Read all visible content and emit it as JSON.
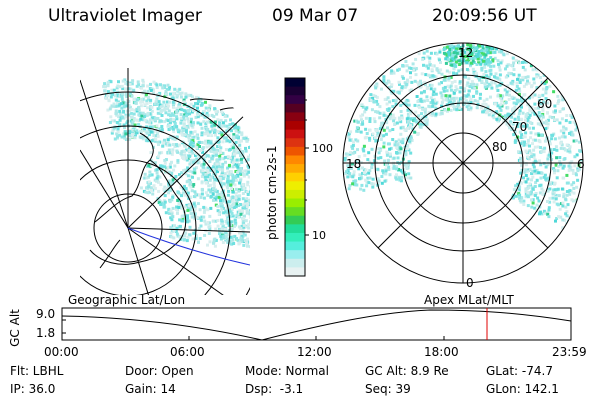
{
  "header": {
    "instrument": "Ultraviolet Imager",
    "date": "09 Mar 07",
    "time": "20:09:56 UT"
  },
  "colorbar": {
    "label": "photon cm-2s-1",
    "ticks": [
      "100",
      "10"
    ],
    "colors": [
      "#000033",
      "#1a0033",
      "#330044",
      "#550022",
      "#880011",
      "#aa0000",
      "#cc1111",
      "#dd3311",
      "#ee5500",
      "#ff8800",
      "#ffaa00",
      "#ffd000",
      "#eeee00",
      "#ccee00",
      "#99ee00",
      "#66dd22",
      "#33cc55",
      "#22dd99",
      "#33eebb",
      "#55eedd",
      "#99eeee",
      "#cceeee",
      "#e8f2f2"
    ]
  },
  "right_plot": {
    "mlt_labels": [
      "12",
      "6",
      "0",
      "18"
    ],
    "mlat_labels": [
      "60",
      "70",
      "80"
    ]
  },
  "timeline": {
    "left_label": "Geographic Lat/Lon",
    "right_label": "Apex MLat/MLT",
    "axis_label": "GC Alt",
    "y_max": "9.0",
    "y_min": "1.8",
    "x_ticks": [
      "00:00",
      "06:00",
      "12:00",
      "18:00",
      "23:59"
    ]
  },
  "info": {
    "flt": "Flt: LBHL",
    "ip": "IP: 36.0",
    "door": "Door: Open",
    "gain": "Gain: 14",
    "mode": "Mode: Normal",
    "dsp": "Dsp:  -3.1",
    "gcalt": "GC Alt: 8.9 Re",
    "seq": "Seq: 39",
    "glat": "GLat: -74.7",
    "glon": "GLon: 142.1"
  }
}
